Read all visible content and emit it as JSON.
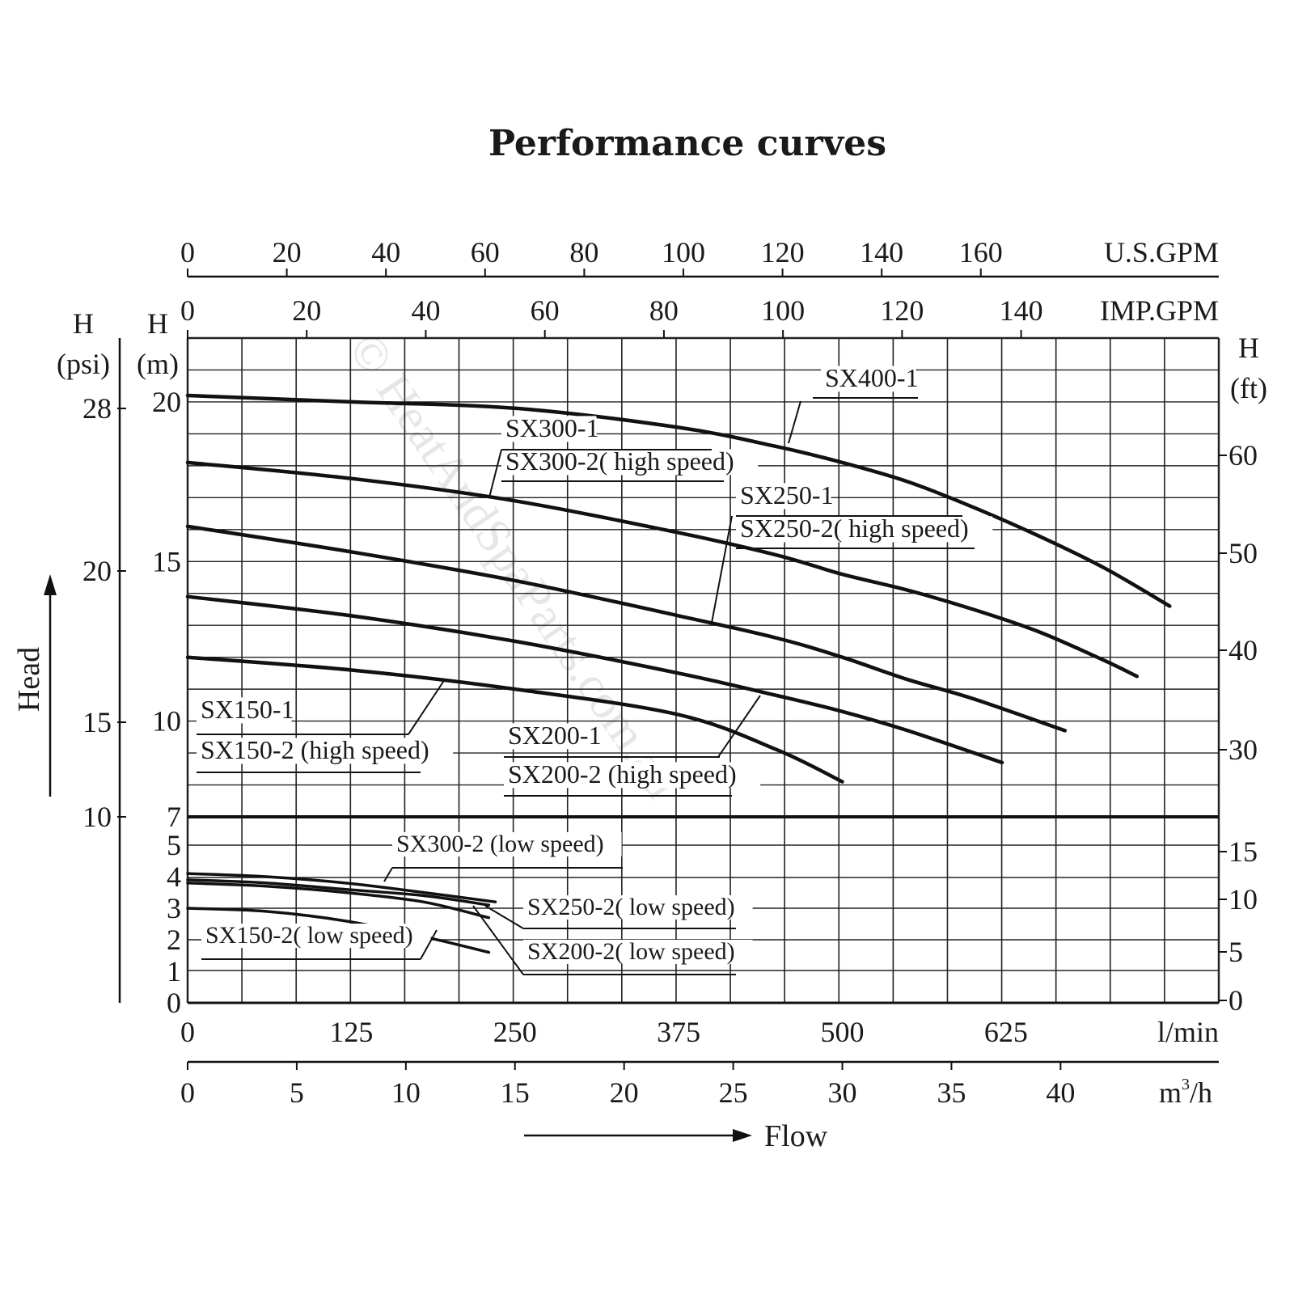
{
  "chart_data": {
    "type": "line",
    "title": "Performance curves",
    "watermark": "© HeatAndSpaParts.com.au",
    "x_axes": {
      "us_gpm": {
        "label": "U.S.GPM",
        "ticks": [
          "0",
          "20",
          "40",
          "60",
          "80",
          "100",
          "120",
          "140",
          "160"
        ]
      },
      "imp_gpm": {
        "label": "IMP.GPM",
        "ticks": [
          "0",
          "20",
          "40",
          "60",
          "80",
          "100",
          "120",
          "140"
        ]
      },
      "lmin": {
        "label": "l/min",
        "ticks": [
          "0",
          "125",
          "250",
          "375",
          "500",
          "625"
        ]
      },
      "m3h": {
        "label": "m",
        "label_sup": "3",
        "label_suffix": "/h",
        "ticks": [
          "0",
          "5",
          "10",
          "15",
          "20",
          "25",
          "30",
          "35",
          "40"
        ]
      }
    },
    "flow_label": "Flow",
    "y_axes": {
      "head_label": "Head",
      "psi": {
        "label_top": "H",
        "label_unit": "(psi)",
        "ticks": [
          "28",
          "20",
          "15",
          "10"
        ]
      },
      "m_upper": {
        "label_top": "H",
        "label_unit": "(m)",
        "ticks": [
          "20",
          "15",
          "10",
          "7"
        ]
      },
      "m_lower": {
        "ticks": [
          "5",
          "4",
          "3",
          "2",
          "1",
          "0"
        ]
      },
      "ft": {
        "label_top": "H",
        "label_unit": "(ft)",
        "ticks": [
          "60",
          "50",
          "40",
          "30",
          "15",
          "10",
          "5",
          "0"
        ]
      }
    },
    "upper_ylim_m": [
      7,
      22
    ],
    "lower_ylim_m": [
      0,
      5
    ],
    "xlim_lmin": [
      0,
      787.5
    ],
    "grid": true,
    "series": [
      {
        "key": "sx400",
        "panel": "upper",
        "x": [
          0,
          125,
          250,
          375,
          450,
          500,
          550,
          600,
          650,
          700,
          750
        ],
        "y": [
          20.2,
          20.0,
          19.8,
          19.2,
          18.6,
          18.1,
          17.5,
          16.7,
          15.8,
          14.8,
          13.6
        ]
      },
      {
        "key": "sx300",
        "panel": "upper",
        "x": [
          0,
          125,
          250,
          375,
          450,
          500,
          550,
          600,
          650,
          700,
          725
        ],
        "y": [
          18.1,
          17.6,
          16.9,
          15.9,
          15.2,
          14.6,
          14.1,
          13.5,
          12.8,
          11.9,
          11.4
        ]
      },
      {
        "key": "sx250",
        "panel": "upper",
        "x": [
          0,
          125,
          250,
          375,
          450,
          500,
          550,
          600,
          670
        ],
        "y": [
          16.1,
          15.3,
          14.4,
          13.3,
          12.6,
          12.0,
          11.3,
          10.7,
          9.7
        ]
      },
      {
        "key": "sx200",
        "panel": "upper",
        "x": [
          0,
          125,
          250,
          375,
          450,
          500,
          550,
          622
        ],
        "y": [
          13.9,
          13.3,
          12.5,
          11.5,
          10.8,
          10.3,
          9.7,
          8.7
        ]
      },
      {
        "key": "sx150",
        "panel": "upper",
        "x": [
          0,
          125,
          250,
          375,
          450,
          500
        ],
        "y": [
          12.0,
          11.6,
          11.0,
          10.2,
          9.1,
          8.1
        ]
      },
      {
        "key": "sx300_low",
        "panel": "lower",
        "x": [
          0,
          60,
          120,
          180,
          235
        ],
        "y": [
          4.1,
          4.0,
          3.8,
          3.5,
          3.2
        ]
      },
      {
        "key": "sx250_low",
        "panel": "lower",
        "x": [
          0,
          60,
          120,
          180,
          230
        ],
        "y": [
          3.9,
          3.8,
          3.6,
          3.4,
          3.1
        ]
      },
      {
        "key": "sx200_low",
        "panel": "lower",
        "x": [
          0,
          60,
          120,
          180,
          230
        ],
        "y": [
          3.8,
          3.7,
          3.5,
          3.2,
          2.7
        ]
      },
      {
        "key": "sx150_low",
        "panel": "lower",
        "x": [
          0,
          60,
          120,
          180,
          230
        ],
        "y": [
          3.0,
          2.9,
          2.6,
          2.1,
          1.6
        ]
      }
    ],
    "annotations": [
      {
        "key": "sx400",
        "lines": [
          "SX400-1"
        ]
      },
      {
        "key": "sx300",
        "lines": [
          "SX300-1",
          "SX300-2( high speed)"
        ]
      },
      {
        "key": "sx250",
        "lines": [
          "SX250-1",
          "SX250-2( high speed)"
        ]
      },
      {
        "key": "sx200",
        "lines": [
          "SX200-1",
          "SX200-2 (high speed)"
        ]
      },
      {
        "key": "sx150",
        "lines": [
          "SX150-1",
          "SX150-2 (high speed)"
        ]
      },
      {
        "key": "sx300_low",
        "lines": [
          "SX300-2 (low speed)"
        ]
      },
      {
        "key": "sx250_low",
        "lines": [
          "SX250-2( low speed)"
        ]
      },
      {
        "key": "sx200_low",
        "lines": [
          "SX200-2( low speed)"
        ]
      },
      {
        "key": "sx150_low",
        "lines": [
          "SX150-2( low speed)"
        ]
      }
    ]
  }
}
